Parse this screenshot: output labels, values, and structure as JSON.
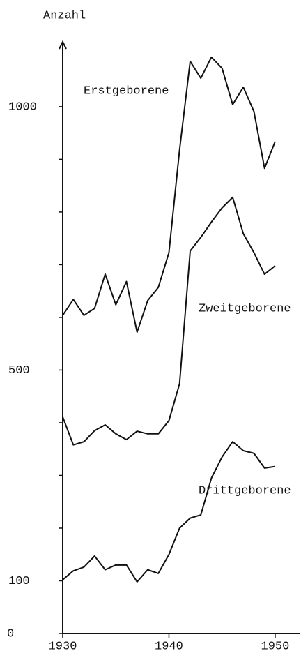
{
  "chart_data": {
    "type": "line",
    "ylabel": "Anzahl",
    "x": [
      1930,
      1931,
      1932,
      1933,
      1934,
      1935,
      1936,
      1937,
      1938,
      1939,
      1940,
      1941,
      1942,
      1943,
      1944,
      1945,
      1946,
      1947,
      1948,
      1949,
      1950
    ],
    "series": [
      {
        "name": "Erstgeborene",
        "color": "#111111",
        "values": [
          604,
          634,
          604,
          617,
          682,
          624,
          668,
          572,
          632,
          657,
          723,
          918,
          1086,
          1054,
          1094,
          1073,
          1004,
          1037,
          991,
          883,
          934
        ]
      },
      {
        "name": "Zweitgeborene",
        "color": "#111111",
        "values": [
          411,
          358,
          364,
          385,
          396,
          379,
          368,
          384,
          379,
          379,
          404,
          474,
          726,
          752,
          781,
          808,
          828,
          759,
          723,
          682,
          698
        ]
      },
      {
        "name": "Drittgeborene",
        "color": "#111111",
        "values": [
          102,
          119,
          126,
          147,
          121,
          130,
          130,
          98,
          121,
          114,
          150,
          200,
          219,
          225,
          295,
          335,
          364,
          347,
          342,
          314,
          317
        ]
      }
    ],
    "xlim": [
      1930,
      1952.3
    ],
    "xticks": [
      1930,
      1940,
      1950
    ],
    "ylim": [
      0,
      1123
    ],
    "yticks": [
      0,
      100,
      500,
      1000
    ],
    "yminorticks": [
      200,
      300,
      400,
      600,
      700,
      800,
      900
    ]
  }
}
